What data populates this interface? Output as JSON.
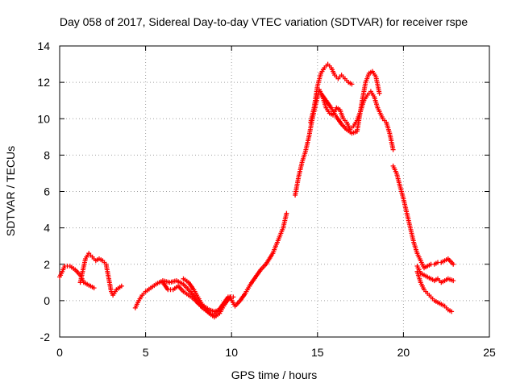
{
  "chart_data": {
    "type": "scatter",
    "title": "Day 058 of 2017, Sidereal Day-to-day VTEC variation (SDTVAR) for receiver rspe",
    "xlabel": "GPS time / hours",
    "ylabel": "SDTVAR / TECUs",
    "xlim": [
      0,
      25
    ],
    "ylim": [
      -2,
      14
    ],
    "x_ticks": [
      0,
      5,
      10,
      15,
      20,
      25
    ],
    "y_ticks": [
      -2,
      0,
      2,
      4,
      6,
      8,
      10,
      12,
      14
    ],
    "grid": true,
    "marker": "plus",
    "series": [
      {
        "name": "SDTVAR",
        "color": "#ff0000",
        "segments": [
          {
            "x": [
              0.0,
              0.3,
              0.6,
              0.9,
              1.2,
              1.4,
              1.6,
              1.8,
              2.0
            ],
            "y": [
              1.3,
              1.9,
              1.9,
              1.7,
              1.4,
              1.0,
              0.9,
              0.8,
              0.7
            ]
          },
          {
            "x": [
              1.2,
              1.5,
              1.7,
              1.9,
              2.1,
              2.3,
              2.5,
              2.7,
              2.8,
              2.9,
              3.0,
              3.1,
              3.3,
              3.6
            ],
            "y": [
              1.0,
              2.3,
              2.6,
              2.4,
              2.2,
              2.3,
              2.2,
              2.0,
              1.5,
              1.0,
              0.5,
              0.3,
              0.6,
              0.8
            ]
          },
          {
            "x": [
              4.4,
              4.6,
              4.8,
              5.0,
              5.3,
              5.6,
              6.0,
              6.4,
              6.8,
              7.2,
              7.6,
              8.0,
              8.3,
              8.6,
              8.9,
              9.2,
              9.5,
              9.8,
              10.1
            ],
            "y": [
              -0.4,
              0.0,
              0.3,
              0.5,
              0.7,
              0.9,
              1.1,
              1.0,
              1.1,
              0.9,
              0.5,
              0.0,
              -0.4,
              -0.6,
              -0.8,
              -0.6,
              -0.2,
              0.2,
              0.2
            ]
          },
          {
            "x": [
              6.0,
              6.3,
              6.6,
              6.9,
              7.2,
              7.5,
              7.8,
              8.1,
              8.4,
              8.7,
              9.0,
              9.3
            ],
            "y": [
              1.0,
              0.6,
              0.6,
              0.8,
              0.5,
              0.3,
              0.1,
              -0.2,
              -0.3,
              -0.5,
              -0.6,
              -0.5
            ]
          },
          {
            "x": [
              7.2,
              7.5,
              7.8,
              8.1,
              8.4,
              8.7,
              9.0,
              9.3,
              9.6,
              9.9,
              10.2,
              10.5,
              10.8,
              11.1,
              11.4,
              11.7,
              12.0,
              12.4,
              12.7,
              13.0,
              13.2
            ],
            "y": [
              1.2,
              1.0,
              0.6,
              0.1,
              -0.4,
              -0.7,
              -0.9,
              -0.7,
              -0.2,
              0.2,
              -0.3,
              0.0,
              0.4,
              0.9,
              1.3,
              1.7,
              2.0,
              2.6,
              3.3,
              4.0,
              4.8
            ]
          },
          {
            "x": [
              13.7,
              13.9,
              14.1,
              14.3,
              14.5,
              14.7,
              14.9,
              15.1,
              15.3,
              15.5,
              15.7,
              15.9,
              16.1,
              16.3,
              16.5,
              16.7,
              16.9,
              17.1,
              17.3,
              17.5,
              17.7,
              17.9,
              18.1,
              18.3,
              18.5,
              18.8,
              19.0,
              19.2,
              19.4
            ],
            "y": [
              5.8,
              6.8,
              7.6,
              8.2,
              9.0,
              10.0,
              10.8,
              11.6,
              11.2,
              10.6,
              10.3,
              10.2,
              10.6,
              10.5,
              10.0,
              9.8,
              9.4,
              9.6,
              9.9,
              10.4,
              11.0,
              11.3,
              11.5,
              11.2,
              10.6,
              10.0,
              9.8,
              9.2,
              8.3
            ]
          },
          {
            "x": [
              14.6,
              14.8,
              15.0,
              15.2,
              15.4,
              15.6,
              15.8,
              16.0,
              16.2,
              16.4,
              16.6,
              16.8,
              17.0
            ],
            "y": [
              9.8,
              10.6,
              11.8,
              12.5,
              12.8,
              13.0,
              12.8,
              12.4,
              12.2,
              12.4,
              12.2,
              12.0,
              11.9
            ]
          },
          {
            "x": [
              15.2,
              15.5,
              15.8,
              16.1,
              16.4,
              16.7,
              17.0,
              17.3,
              17.6,
              17.8,
              18.0,
              18.2,
              18.4,
              18.6
            ],
            "y": [
              11.4,
              11.0,
              10.6,
              10.1,
              9.7,
              9.4,
              9.2,
              9.3,
              11.0,
              12.0,
              12.5,
              12.6,
              12.3,
              11.4
            ]
          },
          {
            "x": [
              19.4,
              19.6,
              19.8,
              20.0,
              20.2,
              20.4,
              20.6,
              20.8,
              21.0,
              21.2,
              21.4,
              21.6,
              21.8,
              22.0,
              22.2,
              22.4,
              22.6,
              22.9
            ],
            "y": [
              7.4,
              7.0,
              6.3,
              5.6,
              4.8,
              4.0,
              3.2,
              2.6,
              2.2,
              1.8,
              1.9,
              2.0,
              2.0,
              2.1,
              2.1,
              2.2,
              2.3,
              2.0
            ]
          },
          {
            "x": [
              20.8,
              21.0,
              21.2,
              21.4,
              21.6,
              21.8,
              22.0,
              22.2,
              22.4,
              22.6,
              22.9
            ],
            "y": [
              1.9,
              1.5,
              1.4,
              1.3,
              1.2,
              1.1,
              1.2,
              1.0,
              1.1,
              1.2,
              1.1
            ]
          },
          {
            "x": [
              20.8,
              21.0,
              21.2,
              21.4,
              21.6,
              21.8,
              22.0,
              22.2,
              22.4,
              22.6,
              22.8
            ],
            "y": [
              1.6,
              1.0,
              0.6,
              0.4,
              0.2,
              0.0,
              -0.1,
              -0.2,
              -0.3,
              -0.5,
              -0.6
            ]
          }
        ]
      }
    ]
  }
}
